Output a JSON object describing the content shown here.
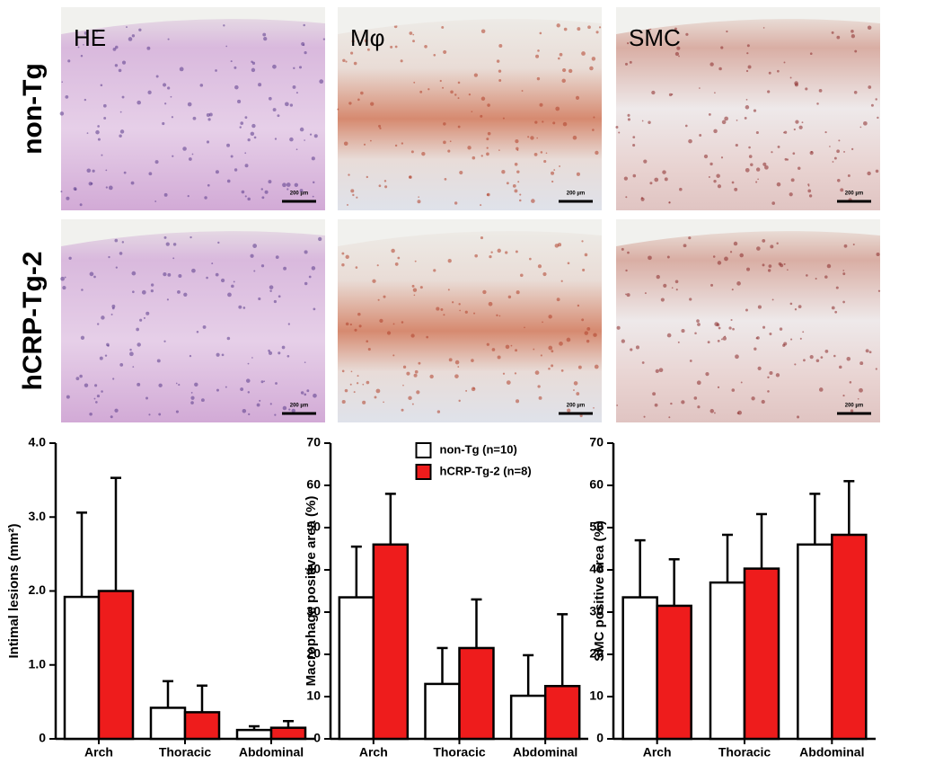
{
  "image_panel": {
    "columns": [
      "HE",
      "Mφ",
      "SMC"
    ],
    "rows": [
      "non-Tg",
      "hCRP-Tg-2"
    ],
    "scale_bar": "200 µm"
  },
  "chart_data": [
    {
      "type": "bar",
      "y_label": "Intimal lesions (mm²)",
      "categories": [
        "Arch",
        "Thoracic",
        "Abdominal"
      ],
      "ylim": [
        0,
        4
      ],
      "yticks": [
        0,
        {
          "value": 1,
          "label": "1.0"
        },
        {
          "value": 2,
          "label": "2.0"
        },
        {
          "value": 3,
          "label": "3.0"
        },
        {
          "value": 4,
          "label": "4.0"
        }
      ],
      "series": [
        {
          "color": "#ffffff",
          "values": [
            1.92,
            0.42,
            0.12
          ],
          "errors": [
            1.14,
            0.36,
            0.05
          ]
        },
        {
          "color": "#ee1c1c",
          "values": [
            2.0,
            0.36,
            0.15
          ],
          "errors": [
            1.53,
            0.36,
            0.09
          ]
        }
      ]
    },
    {
      "type": "bar",
      "y_label": "Macrophage positive area (%)",
      "categories": [
        "Arch",
        "Thoracic",
        "Abdominal"
      ],
      "ylim": [
        0,
        70
      ],
      "yticks": [
        0,
        10,
        20,
        30,
        40,
        50,
        60,
        70
      ],
      "legend": "upper-center",
      "series": [
        {
          "name": "non-Tg (n=10)",
          "color": "#ffffff",
          "values": [
            33.5,
            13,
            10.2
          ],
          "errors": [
            12,
            8.5,
            9.6
          ]
        },
        {
          "name": "hCRP-Tg-2 (n=8)",
          "color": "#ee1c1c",
          "values": [
            46,
            21.5,
            12.5
          ],
          "errors": [
            12,
            11.5,
            17
          ]
        }
      ]
    },
    {
      "type": "bar",
      "y_label": "SMC positive area (%)",
      "categories": [
        "Arch",
        "Thoracic",
        "Abdominal"
      ],
      "ylim": [
        0,
        70
      ],
      "yticks": [
        0,
        10,
        20,
        30,
        40,
        50,
        60,
        70
      ],
      "series": [
        {
          "color": "#ffffff",
          "values": [
            33.5,
            37,
            46
          ],
          "errors": [
            13.5,
            11.3,
            12
          ]
        },
        {
          "color": "#ee1c1c",
          "values": [
            31.5,
            40.3,
            48.3
          ],
          "errors": [
            11,
            12.9,
            12.7
          ]
        }
      ]
    }
  ]
}
